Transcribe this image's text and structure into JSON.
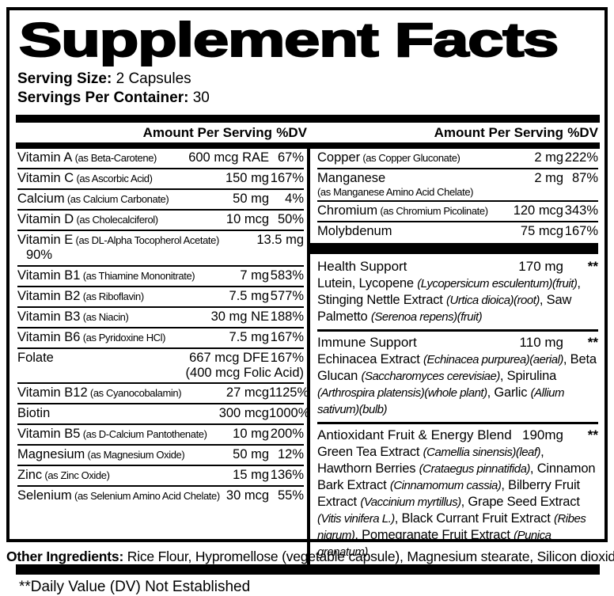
{
  "colors": {
    "ink": "#000000",
    "paper": "#ffffff"
  },
  "title": "Supplement Facts",
  "serving": {
    "size_label": "Serving Size:",
    "size_value": " 2 Capsules",
    "container_label": "Servings Per Container:",
    "container_value": " 30"
  },
  "table_header": {
    "amount": "Amount Per Serving",
    "dv": "%DV"
  },
  "left_rows": [
    {
      "name": "Vitamin A",
      "as": "(as Beta-Carotene)",
      "amount": "600 mcg RAE",
      "dv": "67%"
    },
    {
      "name": "Vitamin C",
      "as": "(as Ascorbic Acid)",
      "amount": "150 mg",
      "dv": "167%"
    },
    {
      "name": "Calcium",
      "as": "(as Calcium Carbonate)",
      "amount": "50 mg",
      "dv": "4%"
    },
    {
      "name": "Vitamin D",
      "as": "(as Cholecalciferol)",
      "amount": "10 mcg",
      "dv": "50%"
    },
    {
      "name": "Vitamin E",
      "as": "(as DL-Alpha Tocopherol Acetate)",
      "amount": "13.5 mg",
      "dv": "90%"
    },
    {
      "name": "Vitamin B1",
      "as": "(as Thiamine Mononitrate)",
      "amount": "7 mg",
      "dv": "583%"
    },
    {
      "name": "Vitamin B2",
      "as": "(as Riboflavin)",
      "amount": "7.5 mg",
      "dv": "577%"
    },
    {
      "name": "Vitamin B3",
      "as": "(as Niacin)",
      "amount": "30 mg NE",
      "dv": "188%"
    },
    {
      "name": "Vitamin B6",
      "as": "(as Pyridoxine HCl)",
      "amount": "7.5 mg",
      "dv": "167%"
    },
    {
      "name": "Folate",
      "amount": "667 mcg DFE",
      "dv": "167%",
      "amount2": "(400 mcg Folic Acid)"
    },
    {
      "name": "Vitamin B12",
      "as": "(as Cyanocobalamin)",
      "amount": "27 mcg",
      "dv": "1125%"
    },
    {
      "name": "Biotin",
      "amount": "300 mcg",
      "dv": "1000%"
    },
    {
      "name": "Vitamin B5",
      "as": "(as D-Calcium Pantothenate)",
      "amount": "10 mg",
      "dv": "200%"
    },
    {
      "name": "Magnesium",
      "as": "(as Magnesium Oxide)",
      "amount": "50 mg",
      "dv": "12%"
    },
    {
      "name": "Zinc",
      "as": "(as Zinc Oxide)",
      "amount": "15 mg",
      "dv": "136%"
    },
    {
      "name": "Selenium",
      "as": "(as Selenium Amino Acid Chelate)",
      "amount": "30 mcg",
      "dv": "55%"
    }
  ],
  "right_column": [
    {
      "type": "row",
      "name": "Copper",
      "as": "(as Copper Gluconate)",
      "amount": "2 mg",
      "dv": "222%"
    },
    {
      "type": "row",
      "name": "Manganese",
      "as": "(as Manganese Amino Acid Chelate)",
      "as_own_line": true,
      "amount": "2 mg",
      "dv": "87%"
    },
    {
      "type": "row",
      "name": "Chromium",
      "as": "(as Chromium Picolinate)",
      "amount": "120 mcg",
      "dv": "343%"
    },
    {
      "type": "row",
      "name": "Molybdenum",
      "amount": "75 mcg",
      "dv": "167%"
    },
    {
      "type": "bar"
    },
    {
      "type": "blend",
      "name": "Health Support",
      "amount": "170 mg",
      "dv": "**",
      "desc": [
        {
          "t": "Lutein, Lycopene "
        },
        {
          "t": "(Lycopersicum esculentum)(fruit)",
          "i": true
        },
        {
          "t": ", Stinging Nettle Extract "
        },
        {
          "t": "(Urtica dioica)(root)",
          "i": true
        },
        {
          "t": ", Saw Palmetto "
        },
        {
          "t": "(Serenoa repens)(fruit)",
          "i": true
        }
      ]
    },
    {
      "type": "blend",
      "name": "Immune Support",
      "amount": "110 mg",
      "dv": "**",
      "desc": [
        {
          "t": "Echinacea Extract "
        },
        {
          "t": "(Echinacea purpurea)(aerial)",
          "i": true
        },
        {
          "t": ", Beta Glucan "
        },
        {
          "t": "(Saccharomyces cerevisiae)",
          "i": true
        },
        {
          "t": ", Spirulina "
        },
        {
          "t": "(Arthrospira platensis)(whole plant)",
          "i": true
        },
        {
          "t": ", Garlic "
        },
        {
          "t": "(Allium sativum)(bulb)",
          "i": true
        }
      ]
    },
    {
      "type": "blend",
      "name": "Antioxidant Fruit & Energy Blend",
      "amount": "190mg",
      "dv": "**",
      "desc": [
        {
          "t": "Green Tea Extract "
        },
        {
          "t": "(Camellia sinensis)(leaf)",
          "i": true
        },
        {
          "t": ", Hawthorn Berries "
        },
        {
          "t": "(Crataegus pinnatifida)",
          "i": true
        },
        {
          "t": ", Cinnamon Bark Extract "
        },
        {
          "t": "(Cinnamomum cassia)",
          "i": true
        },
        {
          "t": ", Bilberry Fruit Extract "
        },
        {
          "t": "(Vaccinium myrtillus)",
          "i": true
        },
        {
          "t": ", Grape Seed Extract "
        },
        {
          "t": "(Vitis vinifera L.)",
          "i": true
        },
        {
          "t": ", Black Currant Fruit Extract "
        },
        {
          "t": "(Ribes nigrum)",
          "i": true
        },
        {
          "t": ", Pomegranate Fruit Extract "
        },
        {
          "t": "(Punica granatum)",
          "i": true
        }
      ]
    }
  ],
  "footnote": "**Daily Value (DV) Not Established",
  "other": {
    "label": "Other Ingredients:",
    "text": " Rice Flour, Hypromellose (vegetable capsule), Magnesium stearate, Silicon dioxide."
  }
}
